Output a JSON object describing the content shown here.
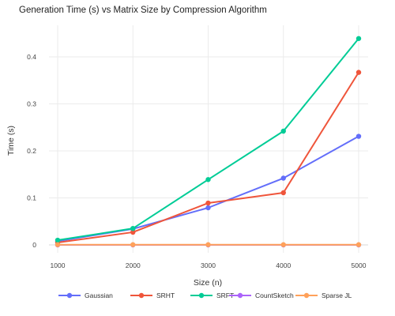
{
  "chart_data": {
    "type": "line",
    "title": "Generation Time (s) vs Matrix Size by Compression Algorithm",
    "xlabel": "Size (n)",
    "ylabel": "Time (s)",
    "x": [
      1000,
      2000,
      3000,
      4000,
      5000
    ],
    "x_ticks": [
      1000,
      2000,
      3000,
      4000,
      5000
    ],
    "y_ticks": [
      0,
      0.1,
      0.2,
      0.3,
      0.4
    ],
    "xlim": [
      1000,
      5000
    ],
    "ylim": [
      -0.012,
      0.47
    ],
    "grid": true,
    "legend_position": "bottom",
    "series": [
      {
        "name": "Gaussian",
        "color": "#636efa",
        "values": [
          0.008,
          0.034,
          0.079,
          0.142,
          0.231
        ]
      },
      {
        "name": "SRHT",
        "color": "#ef553b",
        "values": [
          0.005,
          0.027,
          0.089,
          0.111,
          0.367
        ]
      },
      {
        "name": "SRFT",
        "color": "#00cc96",
        "values": [
          0.01,
          0.035,
          0.139,
          0.242,
          0.439
        ]
      },
      {
        "name": "CountSketch",
        "color": "#ab63fa",
        "values": [
          0.0,
          0.0,
          0.0,
          0.0,
          0.0
        ]
      },
      {
        "name": "Sparse JL",
        "color": "#ffa15a",
        "values": [
          0.0005,
          0.0005,
          0.0005,
          0.0005,
          0.0005
        ]
      }
    ]
  }
}
